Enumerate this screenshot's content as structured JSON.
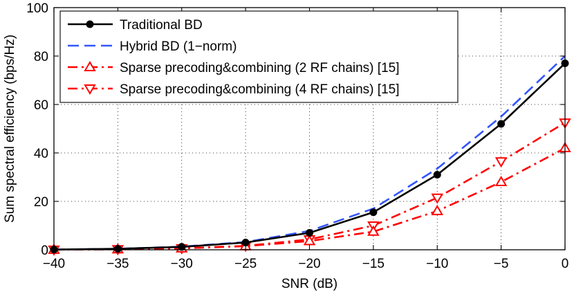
{
  "chart_data": {
    "type": "line",
    "title": "",
    "xlabel": "SNR (dB)",
    "ylabel": "Sum spectral efficiency (bps/Hz)",
    "xlim": [
      -40,
      0
    ],
    "ylim": [
      0,
      100
    ],
    "x": [
      -40,
      -35,
      -30,
      -25,
      -20,
      -15,
      -10,
      -5,
      0
    ],
    "x_tick_labels": [
      "−40",
      "−35",
      "−30",
      "−25",
      "−20",
      "−15",
      "−10",
      "−5",
      "0"
    ],
    "y_ticks": [
      0,
      20,
      40,
      60,
      80,
      100
    ],
    "y_tick_labels": [
      "0",
      "20",
      "40",
      "60",
      "80",
      "100"
    ],
    "grid": true,
    "legend_position": "top-left",
    "series": [
      {
        "name": "Traditional BD",
        "values": [
          0.1,
          0.4,
          1.2,
          3.0,
          7.0,
          15.5,
          31.0,
          52.0,
          77.0
        ],
        "color": "#000000",
        "dash": "solid",
        "marker": "filled-circle"
      },
      {
        "name": "Hybrid BD (1−norm)",
        "values": [
          0.1,
          0.4,
          1.3,
          3.2,
          7.8,
          17.0,
          33.5,
          55.0,
          80.0
        ],
        "color": "#3355ff",
        "dash": "dashed",
        "marker": "none"
      },
      {
        "name": "Sparse precoding&combining (2 RF chains) [15]",
        "values": [
          0.05,
          0.2,
          0.6,
          1.5,
          3.6,
          7.5,
          16.0,
          28.0,
          42.0
        ],
        "color": "#ff0000",
        "dash": "dashdot",
        "marker": "triangle-up"
      },
      {
        "name": "Sparse precoding&combining (4 RF chains) [15]",
        "values": [
          0.05,
          0.2,
          0.6,
          1.6,
          4.3,
          10.0,
          21.5,
          36.5,
          52.5
        ],
        "color": "#ff0000",
        "dash": "dashdot",
        "marker": "triangle-down"
      }
    ]
  }
}
